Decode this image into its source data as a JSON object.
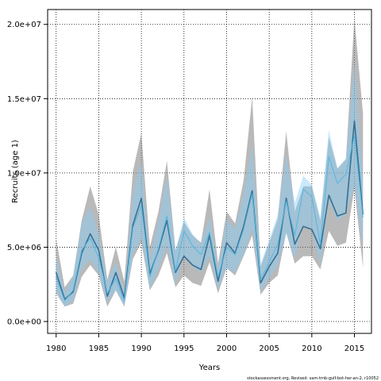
{
  "chart_data": {
    "type": "line",
    "title": "",
    "xlabel": "Years",
    "ylabel": "Recruits (age 1)",
    "xlim": [
      1979,
      2017
    ],
    "ylim": [
      -800000,
      21000000
    ],
    "x_ticks": [
      1980,
      1985,
      1990,
      1995,
      2000,
      2005,
      2010,
      2015
    ],
    "x_tick_labels": [
      "1980",
      "1985",
      "1990",
      "1995",
      "2000",
      "2005",
      "2010",
      "2015"
    ],
    "y_ticks": [
      0,
      5000000,
      10000000,
      15000000,
      20000000
    ],
    "y_tick_labels": [
      "0.0e+00",
      "5.0e+06",
      "1.0e+07",
      "1.5e+07",
      "2.0e+07"
    ],
    "grid": true,
    "x": [
      1980,
      1981,
      1982,
      1983,
      1984,
      1985,
      1986,
      1987,
      1988,
      1989,
      1990,
      1991,
      1992,
      1993,
      1994,
      1995,
      1996,
      1997,
      1998,
      1999,
      2000,
      2001,
      2002,
      2003,
      2004,
      2005,
      2006,
      2007,
      2008,
      2009,
      2010,
      2011,
      2012,
      2013,
      2014,
      2015,
      2016
    ],
    "series": [
      {
        "color": "#3b6f8f",
        "values": [
          3300000,
          1500000,
          2000000,
          4600000,
          5900000,
          4800000,
          1700000,
          3300000,
          1600000,
          6500000,
          8300000,
          3200000,
          4800000,
          6800000,
          3300000,
          4400000,
          3800000,
          3500000,
          5800000,
          2700000,
          5300000,
          4600000,
          6400000,
          8800000,
          2600000,
          3700000,
          4600000,
          8300000,
          5200000,
          6400000,
          6200000,
          4900000,
          8500000,
          7100000,
          7300000,
          13500000,
          7200000
        ],
        "lower": [
          1900000,
          1000000,
          1200000,
          3000000,
          3800000,
          3100000,
          1000000,
          2100000,
          1000000,
          4200000,
          5300000,
          2100000,
          3100000,
          4600000,
          2300000,
          3100000,
          2600000,
          2400000,
          4000000,
          1900000,
          3600000,
          3100000,
          4400000,
          5800000,
          1800000,
          2600000,
          3100000,
          6000000,
          3900000,
          4400000,
          4400000,
          3500000,
          6100000,
          5100000,
          5300000,
          9000000,
          3600000
        ],
        "upper": [
          5600000,
          2300000,
          3100000,
          6800000,
          9100000,
          7200000,
          2800000,
          5000000,
          2700000,
          10100000,
          12700000,
          5000000,
          7400000,
          10800000,
          4800000,
          6700000,
          5800000,
          5300000,
          8900000,
          3900000,
          7400000,
          6600000,
          9500000,
          15100000,
          3700000,
          5300000,
          6900000,
          12800000,
          7400000,
          9100000,
          9100000,
          6800000,
          12400000,
          10300000,
          10900000,
          20400000,
          14000000
        ]
      },
      {
        "color": "#4fb8e0",
        "values": [
          3000000,
          1400000,
          2100000,
          4800000,
          5600000,
          4300000,
          1900000,
          2900000,
          1400000,
          6300000,
          7800000,
          3000000,
          4900000,
          7100000,
          3400000,
          6100000,
          5100000,
          4500000,
          6000000,
          3000000,
          5000000,
          4500000,
          6200000,
          8600000,
          2800000,
          4000000,
          5200000,
          8100000,
          5800000,
          8900000,
          8400000,
          5200000,
          11100000,
          9300000,
          9900000,
          12500000,
          7000000
        ],
        "lower": [
          2000000,
          1000000,
          1400000,
          3500000,
          4200000,
          3200000,
          1300000,
          2100000,
          1000000,
          4500000,
          5600000,
          2200000,
          3500000,
          5100000,
          2500000,
          4400000,
          3700000,
          3300000,
          4400000,
          2200000,
          3600000,
          3300000,
          4500000,
          6200000,
          2000000,
          2900000,
          3800000,
          5900000,
          4200000,
          6500000,
          6100000,
          3800000,
          8100000,
          6800000,
          7200000,
          9100000,
          5100000
        ],
        "upper": [
          4400000,
          2000000,
          3000000,
          6600000,
          7700000,
          5900000,
          2700000,
          4000000,
          2000000,
          8700000,
          10800000,
          4200000,
          6800000,
          9800000,
          4700000,
          7000000,
          5900000,
          5200000,
          7000000,
          3500000,
          6900000,
          6200000,
          8600000,
          11900000,
          3900000,
          5500000,
          7200000,
          11200000,
          8000000,
          9800000,
          9200000,
          7000000,
          12900000,
          10300000,
          11000000,
          17300000,
          9700000
        ]
      }
    ]
  },
  "footer": {
    "credit": "stockassessment.org, Revised: sam-tmb-gulf-bot-her-an-2, r10052"
  }
}
